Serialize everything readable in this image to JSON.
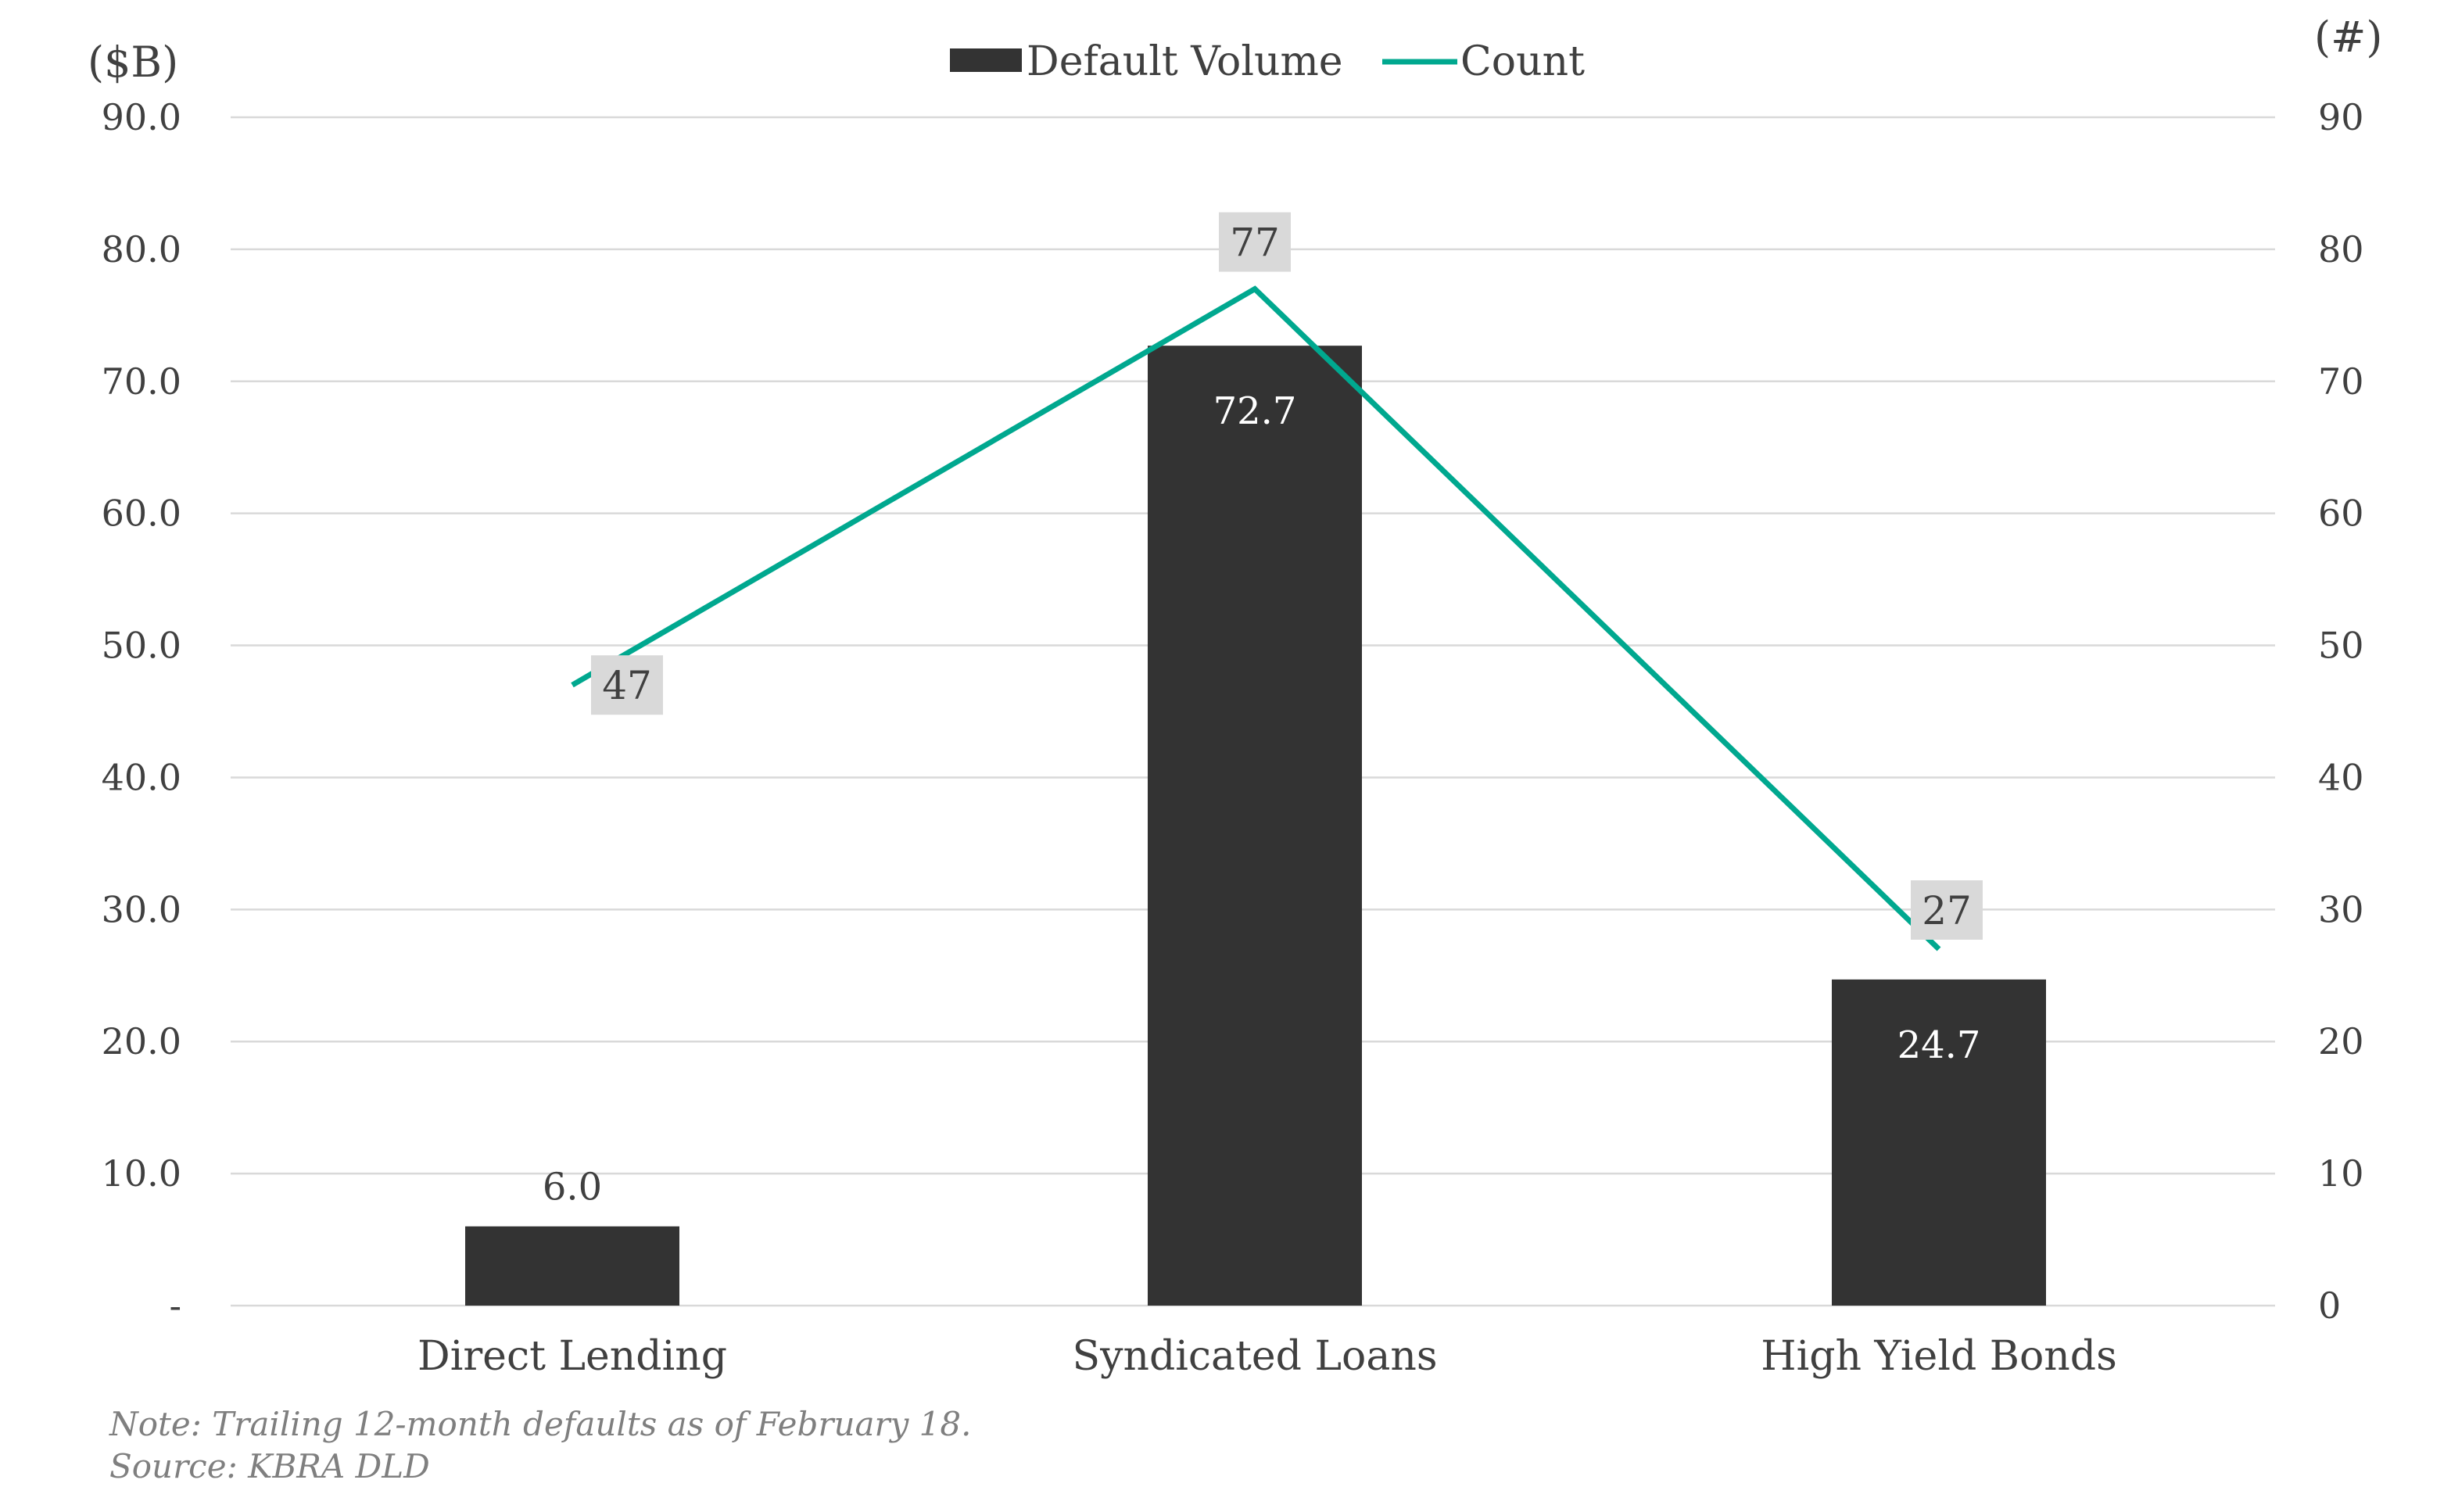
{
  "chart_data": {
    "type": "bar",
    "categories": [
      "Direct Lending",
      "Syndicated Loans",
      "High Yield Bonds"
    ],
    "series": [
      {
        "name": "Default Volume",
        "type": "bar",
        "axis": "left",
        "values": [
          6.0,
          72.7,
          24.7
        ],
        "labels": [
          "6.0",
          "72.7",
          "24.7"
        ],
        "color": "#333333"
      },
      {
        "name": "Count",
        "type": "line",
        "axis": "right",
        "values": [
          47,
          77,
          27
        ],
        "labels": [
          "47",
          "77",
          "27"
        ],
        "color": "#00a88f"
      }
    ],
    "left_axis": {
      "unit_label": "($B)",
      "ylim": [
        0,
        90
      ],
      "ticks": [
        0,
        10,
        20,
        30,
        40,
        50,
        60,
        70,
        80,
        90
      ],
      "tick_labels": [
        "-",
        "10.0",
        "20.0",
        "30.0",
        "40.0",
        "50.0",
        "60.0",
        "70.0",
        "80.0",
        "90.0"
      ]
    },
    "right_axis": {
      "unit_label": "(#)",
      "ylim": [
        0,
        90
      ],
      "ticks": [
        0,
        10,
        20,
        30,
        40,
        50,
        60,
        70,
        80,
        90
      ],
      "tick_labels": [
        "0",
        "10",
        "20",
        "30",
        "40",
        "50",
        "60",
        "70",
        "80",
        "90"
      ]
    },
    "grid": true,
    "legend": "top-center",
    "label_box_color": "#d9d9d9"
  },
  "notes": {
    "line1": "Note: Trailing 12-month defaults as of February 18.",
    "line2": "Source: KBRA DLD"
  }
}
